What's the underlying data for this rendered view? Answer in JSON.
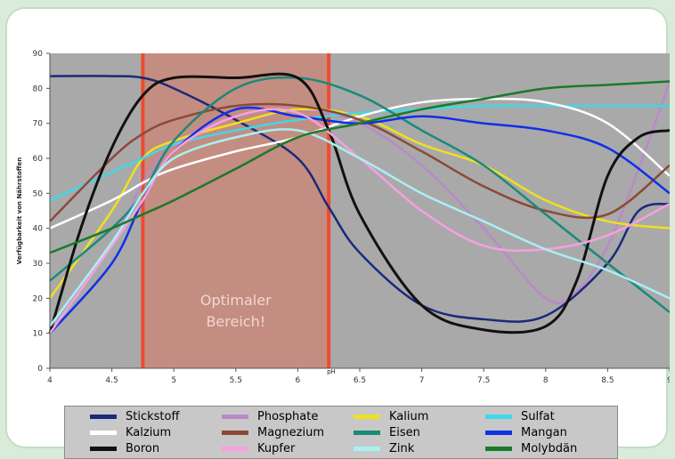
{
  "chart_data": {
    "type": "line",
    "title": "",
    "xlabel": "pH",
    "ylabel": "Verfügbarkeit von Nährstoffen",
    "xlim": [
      4,
      9
    ],
    "ylim": [
      0,
      90
    ],
    "x_ticks": [
      "4",
      "4.5",
      "5",
      "5.5",
      "6",
      "6.5",
      "7",
      "7.5",
      "8",
      "8.5",
      "9"
    ],
    "y_ticks": [
      "0",
      "10",
      "20",
      "30",
      "40",
      "50",
      "60",
      "70",
      "80",
      "90"
    ],
    "grid": false,
    "legend_position": "bottom",
    "optimal_range": {
      "x_start": 4.75,
      "x_end": 6.25,
      "label_line1": "Optimaler",
      "label_line2": "Bereich!"
    },
    "series": [
      {
        "name": "Stickstoff",
        "color": "#1a2a7a",
        "points": [
          [
            4,
            83.5
          ],
          [
            4.5,
            83.5
          ],
          [
            4.75,
            83
          ],
          [
            5,
            80
          ],
          [
            5.5,
            71
          ],
          [
            6,
            60
          ],
          [
            6.25,
            46
          ],
          [
            6.5,
            33
          ],
          [
            7,
            18
          ],
          [
            7.5,
            14
          ],
          [
            8,
            15
          ],
          [
            8.5,
            30
          ],
          [
            8.75,
            45
          ],
          [
            9,
            47
          ]
        ]
      },
      {
        "name": "Phosphate",
        "color": "#b98ac8",
        "points": [
          [
            4,
            12
          ],
          [
            4.5,
            36
          ],
          [
            4.75,
            53
          ],
          [
            5,
            64
          ],
          [
            5.5,
            72
          ],
          [
            6,
            74
          ],
          [
            6.5,
            70
          ],
          [
            7,
            58
          ],
          [
            7.5,
            40
          ],
          [
            8,
            20
          ],
          [
            8.25,
            22
          ],
          [
            8.5,
            35
          ],
          [
            8.75,
            57
          ],
          [
            9,
            82
          ]
        ]
      },
      {
        "name": "Kalium",
        "color": "#f0e020",
        "points": [
          [
            4,
            20
          ],
          [
            4.5,
            45
          ],
          [
            4.75,
            60
          ],
          [
            5,
            65
          ],
          [
            5.5,
            70
          ],
          [
            6,
            74
          ],
          [
            6.5,
            72
          ],
          [
            7,
            64
          ],
          [
            7.5,
            58
          ],
          [
            8,
            48
          ],
          [
            8.5,
            42
          ],
          [
            9,
            40
          ]
        ]
      },
      {
        "name": "Sulfat",
        "color": "#40d8e8",
        "points": [
          [
            4,
            48
          ],
          [
            4.5,
            56
          ],
          [
            4.75,
            60
          ],
          [
            5,
            64
          ],
          [
            5.5,
            68
          ],
          [
            6,
            71
          ],
          [
            6.5,
            73
          ],
          [
            7,
            74
          ],
          [
            7.5,
            75
          ],
          [
            8,
            75
          ],
          [
            8.5,
            75
          ],
          [
            9,
            75
          ]
        ]
      },
      {
        "name": "Kalzium",
        "color": "#ffffff",
        "points": [
          [
            4,
            40
          ],
          [
            4.5,
            48
          ],
          [
            4.75,
            53
          ],
          [
            5,
            57
          ],
          [
            5.5,
            62
          ],
          [
            6,
            66
          ],
          [
            6.5,
            72
          ],
          [
            7,
            76
          ],
          [
            7.5,
            77
          ],
          [
            8,
            76
          ],
          [
            8.5,
            70
          ],
          [
            9,
            55
          ]
        ]
      },
      {
        "name": "Magnezium",
        "color": "#8b4a38",
        "points": [
          [
            4,
            42
          ],
          [
            4.5,
            60
          ],
          [
            4.75,
            67
          ],
          [
            5,
            71
          ],
          [
            5.5,
            75
          ],
          [
            6,
            75
          ],
          [
            6.5,
            71
          ],
          [
            7,
            62
          ],
          [
            7.5,
            52
          ],
          [
            8,
            45
          ],
          [
            8.5,
            44
          ],
          [
            9,
            58
          ]
        ]
      },
      {
        "name": "Eisen",
        "color": "#1a8a7a",
        "points": [
          [
            4,
            25
          ],
          [
            4.5,
            40
          ],
          [
            4.75,
            50
          ],
          [
            5,
            65
          ],
          [
            5.5,
            80
          ],
          [
            6,
            83
          ],
          [
            6.5,
            78
          ],
          [
            7,
            68
          ],
          [
            7.5,
            58
          ],
          [
            8,
            44
          ],
          [
            8.5,
            30
          ],
          [
            9,
            16
          ]
        ]
      },
      {
        "name": "Mangan",
        "color": "#1030e8",
        "points": [
          [
            4,
            10
          ],
          [
            4.5,
            30
          ],
          [
            4.75,
            48
          ],
          [
            5,
            62
          ],
          [
            5.5,
            74
          ],
          [
            6,
            72
          ],
          [
            6.5,
            70
          ],
          [
            7,
            72
          ],
          [
            7.5,
            70
          ],
          [
            8,
            68
          ],
          [
            8.5,
            63
          ],
          [
            9,
            50
          ]
        ]
      },
      {
        "name": "Boron",
        "color": "#111111",
        "points": [
          [
            4,
            10
          ],
          [
            4.25,
            40
          ],
          [
            4.5,
            63
          ],
          [
            4.75,
            78
          ],
          [
            5,
            83
          ],
          [
            5.5,
            83
          ],
          [
            6,
            83
          ],
          [
            6.25,
            68
          ],
          [
            6.5,
            44
          ],
          [
            7,
            18
          ],
          [
            7.5,
            11
          ],
          [
            8,
            12
          ],
          [
            8.25,
            25
          ],
          [
            8.5,
            55
          ],
          [
            8.75,
            66
          ],
          [
            9,
            68
          ]
        ]
      },
      {
        "name": "Kupfer",
        "color": "#f6a0e0",
        "points": [
          [
            4,
            10
          ],
          [
            4.5,
            35
          ],
          [
            4.75,
            48
          ],
          [
            5,
            62
          ],
          [
            5.5,
            72
          ],
          [
            6,
            73
          ],
          [
            6.5,
            60
          ],
          [
            7,
            45
          ],
          [
            7.5,
            35
          ],
          [
            8,
            34
          ],
          [
            8.5,
            38
          ],
          [
            9,
            47
          ]
        ]
      },
      {
        "name": "Zink",
        "color": "#a8f0f4",
        "points": [
          [
            4,
            12
          ],
          [
            4.5,
            36
          ],
          [
            4.75,
            50
          ],
          [
            5,
            60
          ],
          [
            5.5,
            66
          ],
          [
            6,
            68
          ],
          [
            6.5,
            60
          ],
          [
            7,
            50
          ],
          [
            7.5,
            42
          ],
          [
            8,
            34
          ],
          [
            8.5,
            28
          ],
          [
            9,
            20
          ]
        ]
      },
      {
        "name": "Molybdän",
        "color": "#1a7a2a",
        "points": [
          [
            4,
            33
          ],
          [
            4.5,
            40
          ],
          [
            4.75,
            44
          ],
          [
            5,
            48
          ],
          [
            5.5,
            57
          ],
          [
            6,
            66
          ],
          [
            6.5,
            70
          ],
          [
            7,
            74
          ],
          [
            7.5,
            77
          ],
          [
            8,
            80
          ],
          [
            8.5,
            81
          ],
          [
            9,
            82
          ]
        ]
      }
    ]
  }
}
